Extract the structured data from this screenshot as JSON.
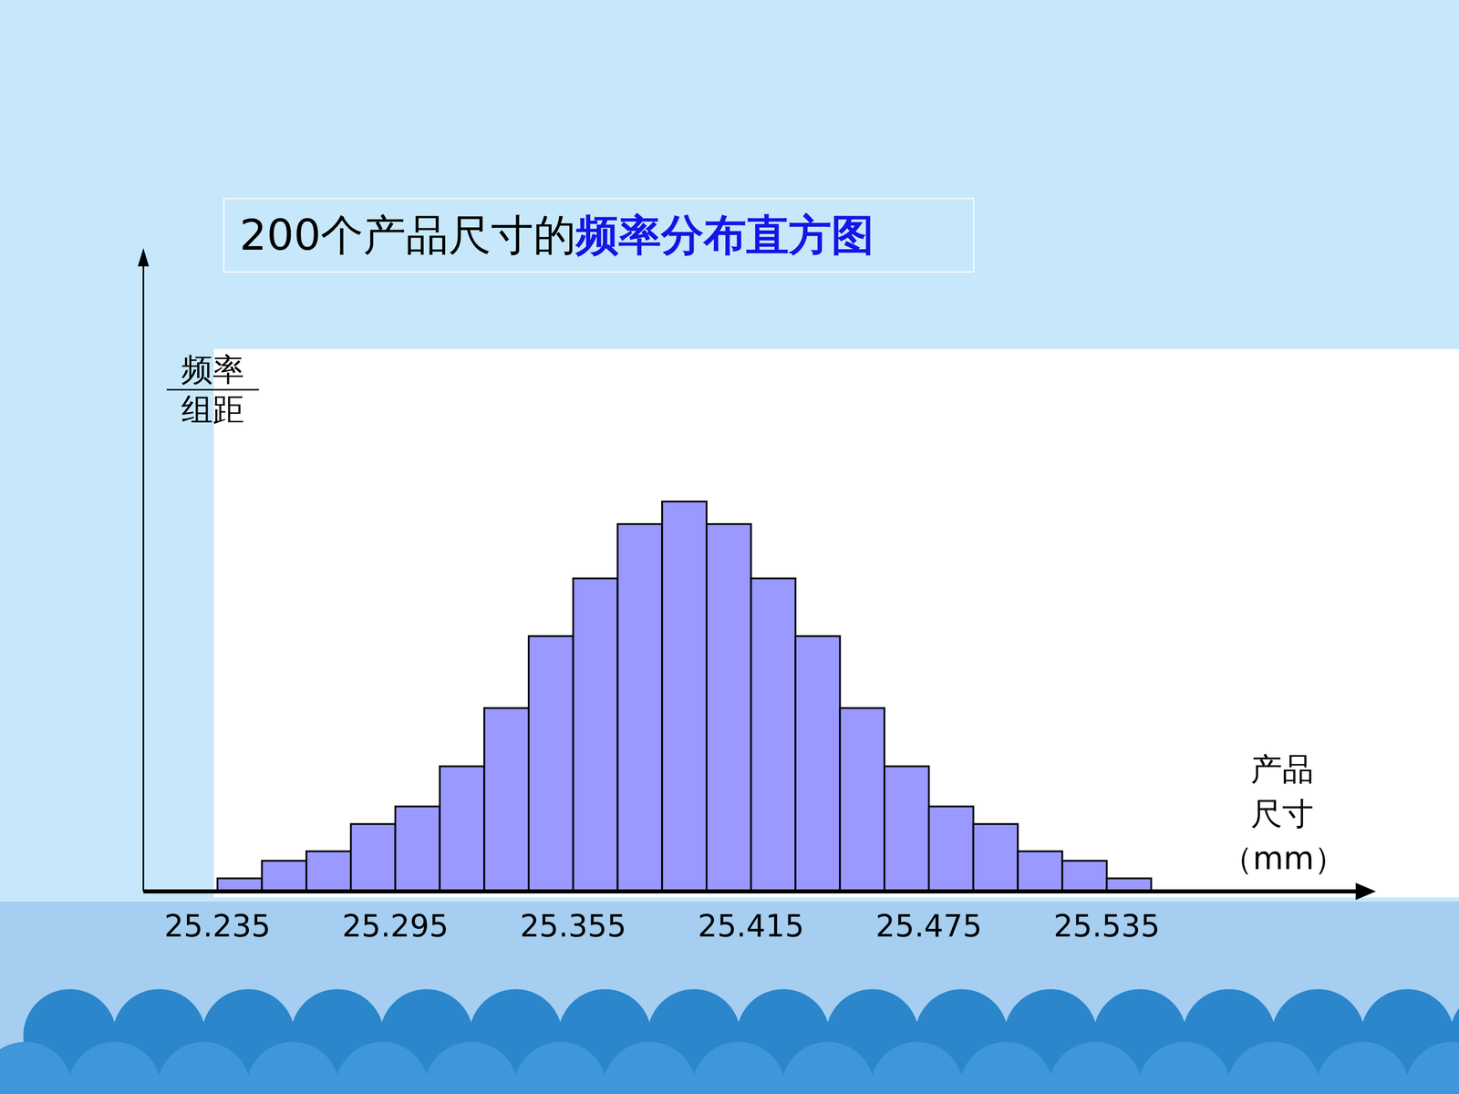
{
  "chart_data": {
    "type": "histogram",
    "title": [
      "200个产品尺寸的",
      "频率分布直方图"
    ],
    "xlabel": "产品尺寸（mm）",
    "ylabel": [
      "频率",
      "组距"
    ],
    "bins": [
      25.235,
      25.25,
      25.265,
      25.28,
      25.295,
      25.31,
      25.325,
      25.34,
      25.355,
      25.37,
      25.385,
      25.4,
      25.415,
      25.43,
      25.445,
      25.46,
      25.475,
      25.49,
      25.505,
      25.52,
      25.535,
      25.55
    ],
    "values": [
      0.26,
      0.61,
      0.8,
      1.34,
      1.69,
      2.49,
      3.65,
      5.08,
      6.23,
      7.31,
      7.76,
      7.31,
      6.23,
      5.08,
      3.65,
      2.49,
      1.69,
      1.34,
      0.8,
      0.61,
      0.26
    ],
    "color": "#9999ff",
    "xlim": [
      25.21,
      25.62
    ],
    "xticks": [
      25.235,
      25.295,
      25.355,
      25.415,
      25.475,
      25.535
    ],
    "ylim": [
      0,
      12.5
    ],
    "tick_labels": "x"
  }
}
